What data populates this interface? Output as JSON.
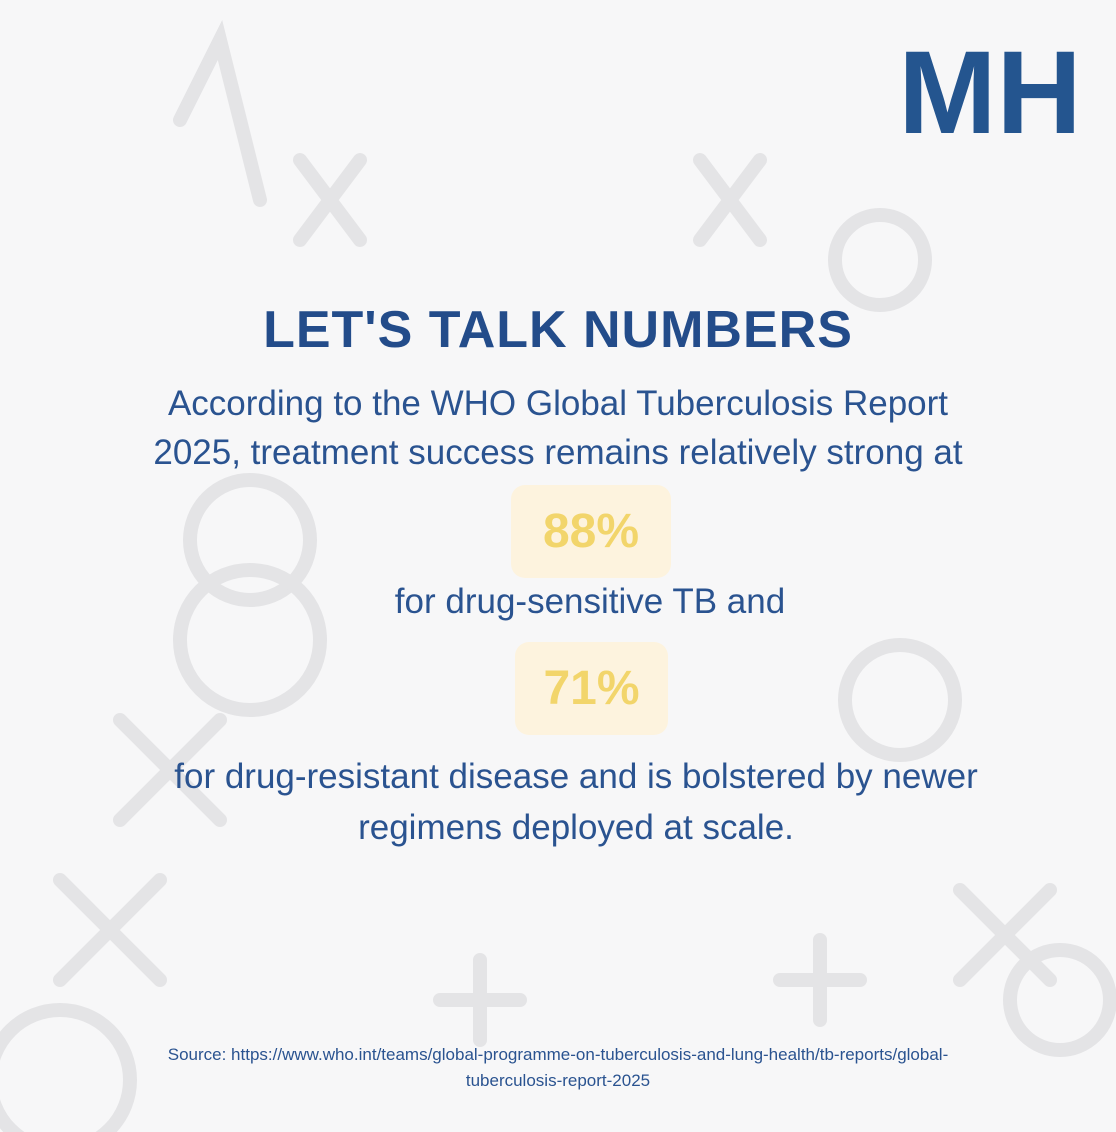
{
  "logo": "MH",
  "title": "LET'S TALK NUMBERS",
  "intro_lines": [
    "According to the WHO Global Tuberculosis Report",
    "2025, treatment success remains relatively strong at"
  ],
  "stats": [
    {
      "value": "88%",
      "caption_lines": [
        "for drug-sensitive TB and"
      ]
    },
    {
      "value": "71%",
      "caption_lines": [
        "for drug-resistant disease and is bolstered by newer",
        "regimens deployed at scale."
      ]
    }
  ],
  "source_lines": [
    "Source: https://www.who.int/teams/global-programme-on-tuberculosis-and-lung-health/tb-reports/global-",
    "tuberculosis-report-2025"
  ]
}
